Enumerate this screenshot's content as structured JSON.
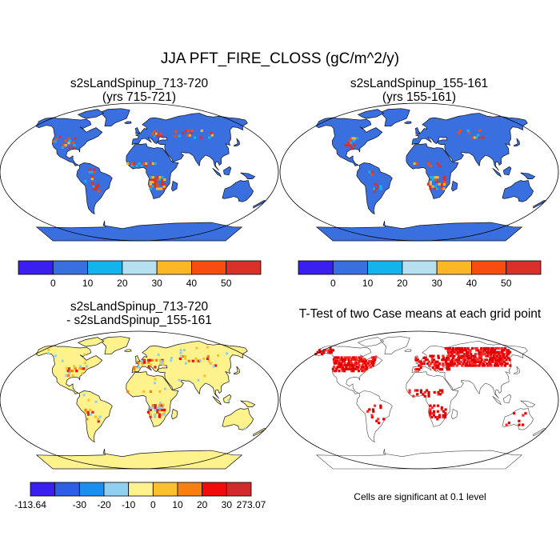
{
  "title": "JJA PFT_FIRE_CLOSS (gC/m^2/y)",
  "panels": {
    "top_left": {
      "title_line1": "s2sLandSpinup_713-720",
      "title_line2": "(yrs 715-721)"
    },
    "top_right": {
      "title_line1": "s2sLandSpinup_155-161",
      "title_line2": "(yrs 155-161)"
    },
    "bottom_left": {
      "title_line1": "s2sLandSpinup_713-720",
      "title_line2": "- s2sLandSpinup_155-161"
    },
    "bottom_right": {
      "title_line1": "T-Test of two Case means at each grid point"
    }
  },
  "note": "Cells are significant at 0.1 level",
  "chart_data": [
    {
      "type": "heatmap",
      "title": "s2sLandSpinup_713-720 (yrs 715-721)",
      "projection": "robinson",
      "colorbar": {
        "tick_labels": [
          "0",
          "10",
          "20",
          "30",
          "40",
          "50"
        ],
        "colors": [
          "#3a1ff0",
          "#3a6fe0",
          "#12b4ec",
          "#b6dff0",
          "#fbb824",
          "#f94c10",
          "#d9302c"
        ]
      },
      "hotspots": [
        "central USA",
        "northern South America",
        "Sahel",
        "southern Africa",
        "Europe",
        "central Asia"
      ]
    },
    {
      "type": "heatmap",
      "title": "s2sLandSpinup_155-161 (yrs 155-161)",
      "projection": "robinson",
      "colorbar": {
        "tick_labels": [
          "0",
          "10",
          "20",
          "30",
          "40",
          "50"
        ],
        "colors": [
          "#3a1ff0",
          "#3a6fe0",
          "#12b4ec",
          "#b6dff0",
          "#fbb824",
          "#f94c10",
          "#d9302c"
        ]
      },
      "hotspots": [
        "central USA",
        "northern South America",
        "Sahel",
        "southern Africa",
        "central Asia"
      ]
    },
    {
      "type": "heatmap",
      "title": "s2sLandSpinup_713-720 - s2sLandSpinup_155-161",
      "projection": "robinson",
      "colorbar": {
        "tick_labels": [
          "-113.64",
          "-30",
          "-20",
          "-10",
          "0",
          "10",
          "20",
          "30",
          "273.07"
        ],
        "colors": [
          "#3a1ff0",
          "#2d5ee6",
          "#1a8ff0",
          "#8fd0f0",
          "#fdf28c",
          "#fbc02d",
          "#f98010",
          "#f20b0b",
          "#d22a2a"
        ]
      },
      "hotspots": [
        "eastern USA",
        "Europe",
        "southern Africa",
        "South America"
      ]
    },
    {
      "type": "heatmap",
      "title": "T-Test of two Case means at each grid point",
      "projection": "robinson",
      "significance_level": 0.1,
      "significant_color": "#e10000",
      "hotspots": [
        "North America",
        "Europe",
        "northern Asia",
        "Africa"
      ]
    }
  ]
}
